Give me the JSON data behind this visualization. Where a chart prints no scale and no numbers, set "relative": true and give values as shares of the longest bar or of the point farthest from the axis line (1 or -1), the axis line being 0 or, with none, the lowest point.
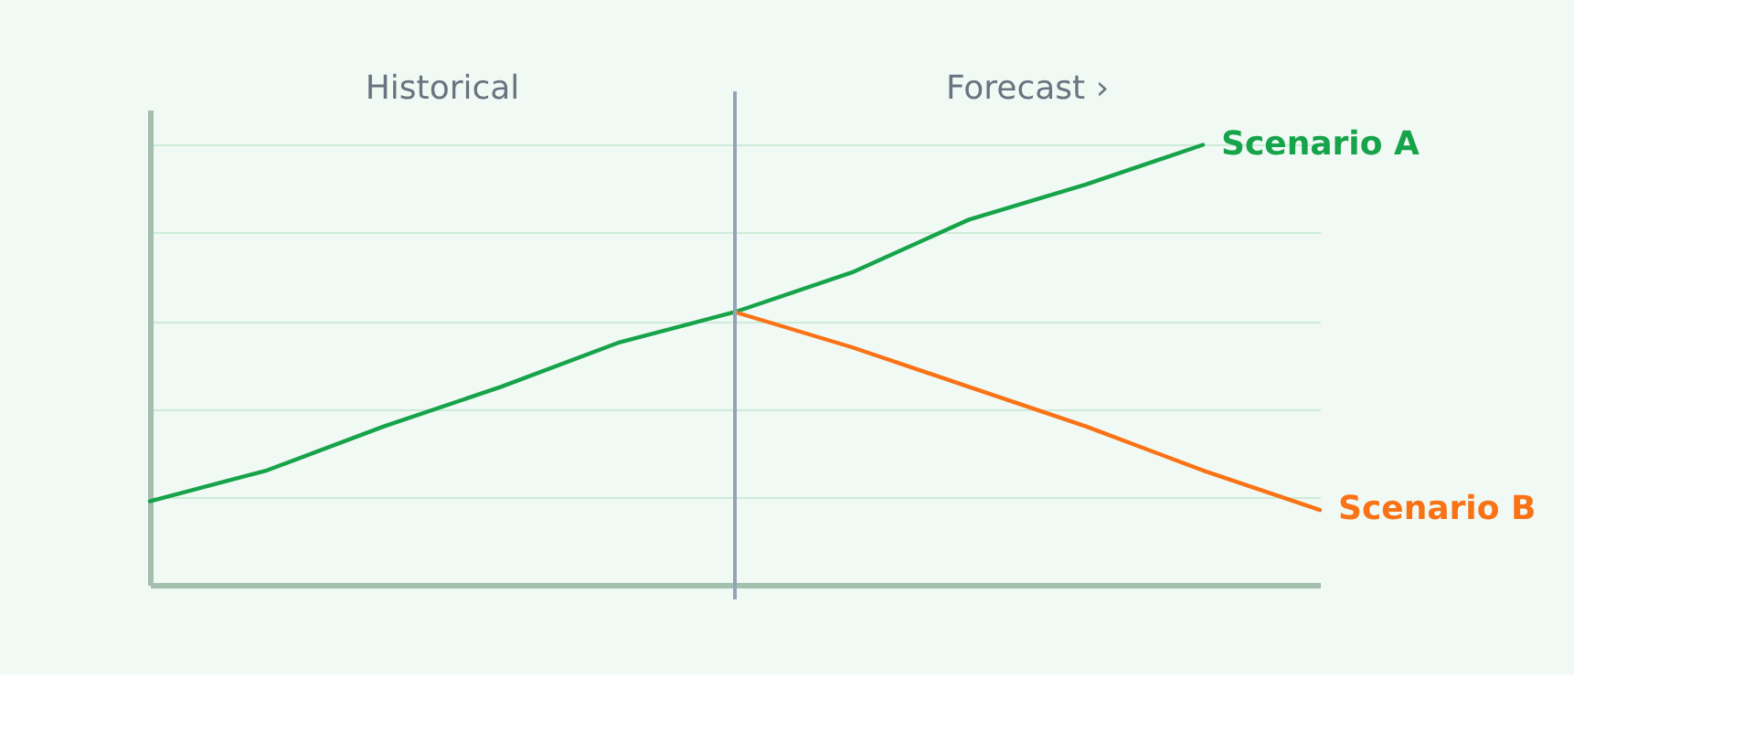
{
  "chart_data": {
    "type": "line",
    "relative": true,
    "categories": [
      null,
      null,
      null,
      null,
      null,
      null,
      null,
      null,
      null,
      null,
      null
    ],
    "tick_labels": false,
    "grid": "y",
    "legend": false,
    "marker": "none",
    "line_style": "solid",
    "annotations": [
      "Historical",
      "Forecast ›"
    ],
    "series": [
      {
        "name": "Scenario A",
        "color": "#16a34a",
        "values": [
          0.19,
          0.26,
          0.36,
          0.45,
          0.55,
          0.62,
          0.71,
          0.83,
          0.91,
          1.0,
          null
        ]
      },
      {
        "name": "Scenario B",
        "color": "#f97316",
        "values": [
          null,
          null,
          null,
          null,
          null,
          0.62,
          0.54,
          0.45,
          0.36,
          0.26,
          0.17
        ]
      }
    ]
  }
}
